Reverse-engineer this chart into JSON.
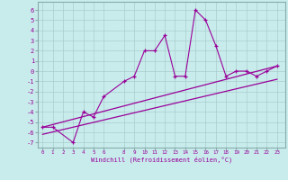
{
  "xlabel": "Windchill (Refroidissement éolien,°C)",
  "bg_color": "#c8ecec",
  "line_color": "#990099",
  "grid_color": "#aacccc",
  "spine_color": "#88aaaa",
  "x_ticks": [
    0,
    1,
    2,
    3,
    4,
    5,
    6,
    8,
    9,
    10,
    11,
    12,
    13,
    14,
    15,
    16,
    17,
    18,
    19,
    20,
    21,
    22,
    23
  ],
  "y_ticks": [
    6,
    5,
    4,
    3,
    2,
    1,
    0,
    -1,
    -2,
    -3,
    -4,
    -5,
    -6,
    -7
  ],
  "ylim": [
    -7.5,
    6.8
  ],
  "xlim": [
    -0.5,
    23.8
  ],
  "line1_x": [
    0,
    1,
    3,
    4,
    5,
    6,
    8,
    9,
    10,
    11,
    12,
    13,
    14,
    15,
    16,
    17,
    18,
    19,
    20,
    21,
    22,
    23
  ],
  "line1_y": [
    -5.5,
    -5.5,
    -7,
    -4,
    -4.5,
    -2.5,
    -1,
    -0.5,
    2,
    2,
    3.5,
    -0.5,
    -0.5,
    6,
    5,
    2.5,
    -0.5,
    0,
    0,
    -0.5,
    0,
    0.5
  ],
  "line2_x": [
    0,
    23
  ],
  "line2_y": [
    -5.5,
    0.5
  ],
  "line3_x": [
    0,
    23
  ],
  "line3_y": [
    -6.2,
    -0.8
  ],
  "xlabel_fontsize": 5.0,
  "tick_fontsize_x": 4.2,
  "tick_fontsize_y": 5.0
}
